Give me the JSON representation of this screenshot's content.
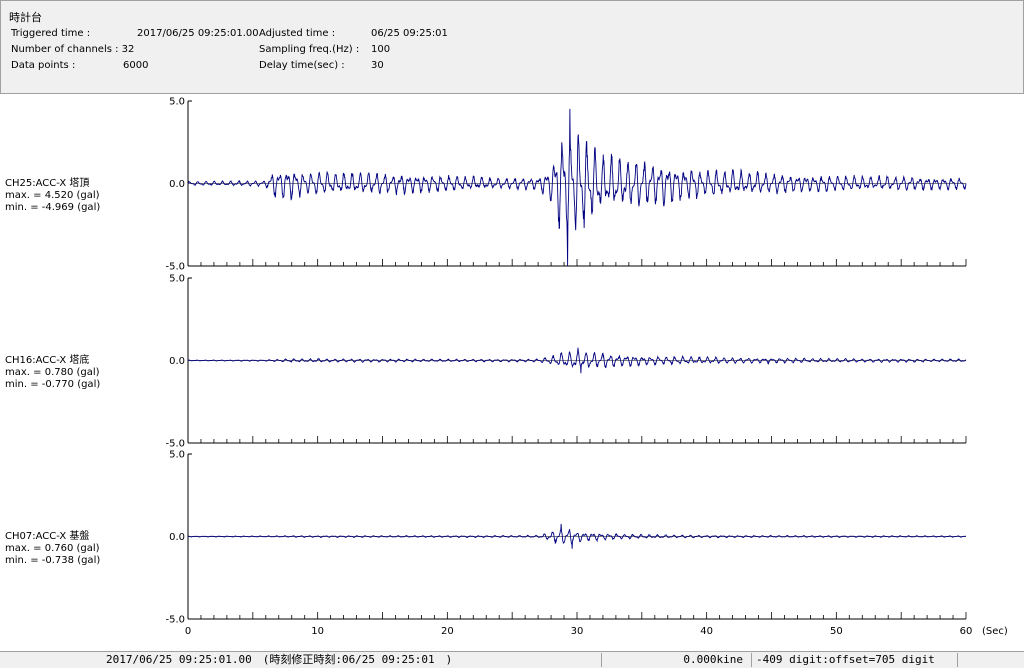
{
  "window_title": "時計台",
  "header": {
    "triggered_label": "Triggered time :",
    "triggered_value": "2017/06/25 09:25:01.00",
    "channels_label": "Number of channels : 32",
    "datapoints_label": "Data points :",
    "datapoints_value": "6000",
    "adjusted_label": "Adjusted time :",
    "adjusted_value": "06/25 09:25:01",
    "sampling_label": "Sampling freq.(Hz) :",
    "sampling_value": "100",
    "delay_label": "Delay time(sec) :",
    "delay_value": "30"
  },
  "chart_data": {
    "type": "line",
    "x_unit": "(Sec)",
    "xlim": [
      0,
      60
    ],
    "x_ticks": [
      0,
      10,
      20,
      30,
      40,
      50,
      60
    ],
    "ylim": [
      -5.0,
      5.0
    ],
    "y_tick_labels": [
      "5.0",
      "0.0",
      "-5.0"
    ],
    "line_color": "#000080",
    "series": [
      {
        "name": "CH25:ACC-X 塔頂",
        "max_label": "max. = 4.520 (gal)",
        "min_label": "min. = -4.969 (gal)",
        "max": 4.52,
        "min": -4.969,
        "envelope": [
          [
            0,
            0.15
          ],
          [
            6,
            0.2
          ],
          [
            6.5,
            0.9
          ],
          [
            7.5,
            1.3
          ],
          [
            9,
            0.85
          ],
          [
            12,
            0.8
          ],
          [
            16,
            0.75
          ],
          [
            20,
            0.6
          ],
          [
            24,
            0.4
          ],
          [
            27,
            0.5
          ],
          [
            28,
            1.2
          ],
          [
            28.5,
            2.8
          ],
          [
            29,
            4.0
          ],
          [
            29.5,
            4.6
          ],
          [
            30,
            4.2
          ],
          [
            31,
            3.0
          ],
          [
            32,
            2.2
          ],
          [
            33,
            1.9
          ],
          [
            35,
            1.7
          ],
          [
            37,
            1.4
          ],
          [
            40,
            1.0
          ],
          [
            45,
            0.75
          ],
          [
            50,
            0.55
          ],
          [
            55,
            0.5
          ],
          [
            60,
            0.45
          ]
        ]
      },
      {
        "name": "CH16:ACC-X 塔底",
        "max_label": "max. = 0.780 (gal)",
        "min_label": "min. = -0.770 (gal)",
        "max": 0.78,
        "min": -0.77,
        "envelope": [
          [
            0,
            0.03
          ],
          [
            6,
            0.05
          ],
          [
            8,
            0.13
          ],
          [
            12,
            0.12
          ],
          [
            20,
            0.09
          ],
          [
            27,
            0.1
          ],
          [
            28,
            0.3
          ],
          [
            29,
            0.6
          ],
          [
            30,
            0.75
          ],
          [
            31,
            0.6
          ],
          [
            33,
            0.45
          ],
          [
            35,
            0.35
          ],
          [
            38,
            0.28
          ],
          [
            42,
            0.2
          ],
          [
            50,
            0.13
          ],
          [
            60,
            0.1
          ]
        ]
      },
      {
        "name": "CH07:ACC-X 基盤",
        "max_label": "max. = 0.760 (gal)",
        "min_label": "min. = -0.738 (gal)",
        "max": 0.76,
        "min": -0.738,
        "envelope": [
          [
            0,
            0.03
          ],
          [
            6,
            0.04
          ],
          [
            8,
            0.06
          ],
          [
            20,
            0.06
          ],
          [
            27,
            0.08
          ],
          [
            28,
            0.3
          ],
          [
            28.7,
            0.75
          ],
          [
            29.5,
            0.6
          ],
          [
            30.5,
            0.35
          ],
          [
            32,
            0.25
          ],
          [
            35,
            0.14
          ],
          [
            40,
            0.08
          ],
          [
            50,
            0.06
          ],
          [
            60,
            0.05
          ]
        ]
      }
    ]
  },
  "status": {
    "time": "2017/06/25 09:25:01.00　(時刻修正時刻:06/25 09:25:01　)",
    "velocity": "0.000kine",
    "digit": "-409 digit:offset=705 digit"
  }
}
